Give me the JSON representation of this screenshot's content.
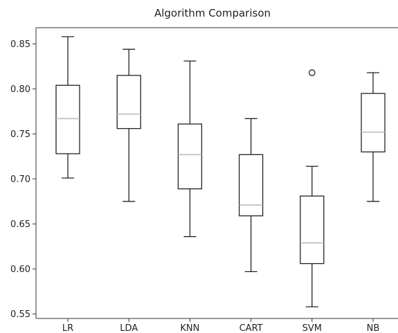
{
  "chart_data": {
    "type": "box",
    "title": "Algorithm Comparison",
    "xlabel": "",
    "ylabel": "",
    "ylim": [
      0.545,
      0.868
    ],
    "yticks": [
      "0.55",
      "0.60",
      "0.65",
      "0.70",
      "0.75",
      "0.80",
      "0.85"
    ],
    "categories": [
      "LR",
      "LDA",
      "KNN",
      "CART",
      "SVM",
      "NB"
    ],
    "boxes": [
      {
        "name": "LR",
        "whisker_low": 0.701,
        "q1": 0.728,
        "median": 0.767,
        "q3": 0.804,
        "whisker_high": 0.858,
        "fliers": []
      },
      {
        "name": "LDA",
        "whisker_low": 0.675,
        "q1": 0.756,
        "median": 0.772,
        "q3": 0.815,
        "whisker_high": 0.844,
        "fliers": []
      },
      {
        "name": "KNN",
        "whisker_low": 0.636,
        "q1": 0.689,
        "median": 0.727,
        "q3": 0.761,
        "whisker_high": 0.831,
        "fliers": []
      },
      {
        "name": "CART",
        "whisker_low": 0.597,
        "q1": 0.659,
        "median": 0.671,
        "q3": 0.727,
        "whisker_high": 0.767,
        "fliers": []
      },
      {
        "name": "SVM",
        "whisker_low": 0.558,
        "q1": 0.606,
        "median": 0.629,
        "q3": 0.681,
        "whisker_high": 0.714,
        "fliers": [
          0.818
        ]
      },
      {
        "name": "NB",
        "whisker_low": 0.675,
        "q1": 0.73,
        "median": 0.752,
        "q3": 0.795,
        "whisker_high": 0.818,
        "fliers": []
      }
    ],
    "grid": false,
    "legend": "none",
    "colors": {
      "box": "#222222",
      "median": "#bdbdbd",
      "axis": "#333333"
    }
  }
}
